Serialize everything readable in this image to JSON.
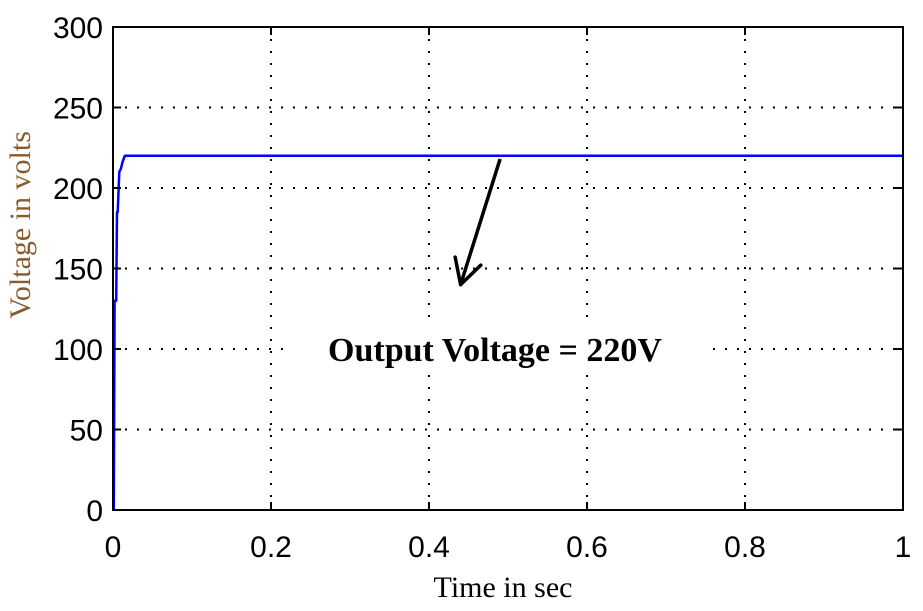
{
  "chart_data": {
    "type": "line",
    "title": "",
    "xlabel": "Time in sec",
    "ylabel": "Voltage in volts",
    "xlim": [
      0,
      1
    ],
    "ylim": [
      0,
      300
    ],
    "x_ticks": [
      0,
      0.2,
      0.4,
      0.6,
      0.8,
      1
    ],
    "x_tick_labels": [
      "0",
      "0.2",
      "0.4",
      "0.6",
      "0.8",
      "1"
    ],
    "y_ticks": [
      0,
      50,
      100,
      150,
      200,
      250,
      300
    ],
    "y_tick_labels": [
      "0",
      "50",
      "100",
      "150",
      "200",
      "250",
      "300"
    ],
    "grid": true,
    "series": [
      {
        "color": "#0000ff",
        "x": [
          0,
          0.001,
          0.002,
          0.004,
          0.005,
          0.006,
          0.008,
          0.01,
          0.012,
          0.015,
          0.02,
          0.03,
          1.0
        ],
        "y": [
          0,
          0,
          130,
          130,
          185,
          185,
          210,
          212,
          216,
          220,
          220,
          220,
          220
        ]
      }
    ],
    "annotations": [
      {
        "text": "Output Voltage = 220V",
        "arrow_from": [
          0.49,
          218
        ],
        "arrow_to": [
          0.44,
          140
        ]
      }
    ]
  },
  "colors": {
    "line": "#0000ff",
    "ylabel": "#8a5a2b",
    "axis": "#000000",
    "grid": "#000000"
  }
}
